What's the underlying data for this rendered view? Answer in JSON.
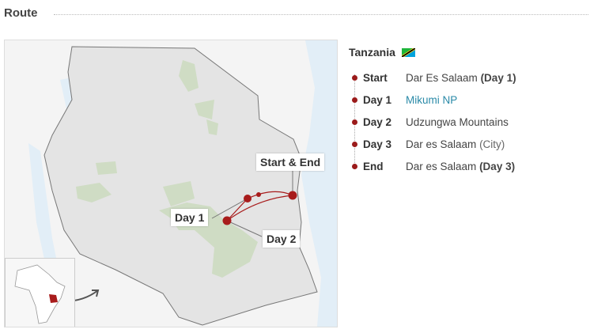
{
  "section_title": "Route",
  "map": {
    "labels": {
      "start_end": "Start & End",
      "day1": "Day 1",
      "day2": "Day 2"
    },
    "route_color": "#a81c1c",
    "park_color": "#cfdcc4",
    "sea_color": "#e2eef7"
  },
  "country": {
    "name": "Tanzania",
    "flag_icon": "tanzania-flag-icon"
  },
  "itinerary": [
    {
      "key": "Start",
      "place": "Dar Es Salaam",
      "note": "(Day 1)",
      "note_bold": true
    },
    {
      "key": "Day 1",
      "place": "Mikumi NP",
      "note": "",
      "link": true
    },
    {
      "key": "Day 2",
      "place": "Udzungwa Mountains",
      "note": ""
    },
    {
      "key": "Day 3",
      "place": "Dar es Salaam",
      "note": "(City)"
    },
    {
      "key": "End",
      "place": "Dar es Salaam",
      "note": "(Day 3)",
      "note_bold": true
    }
  ]
}
